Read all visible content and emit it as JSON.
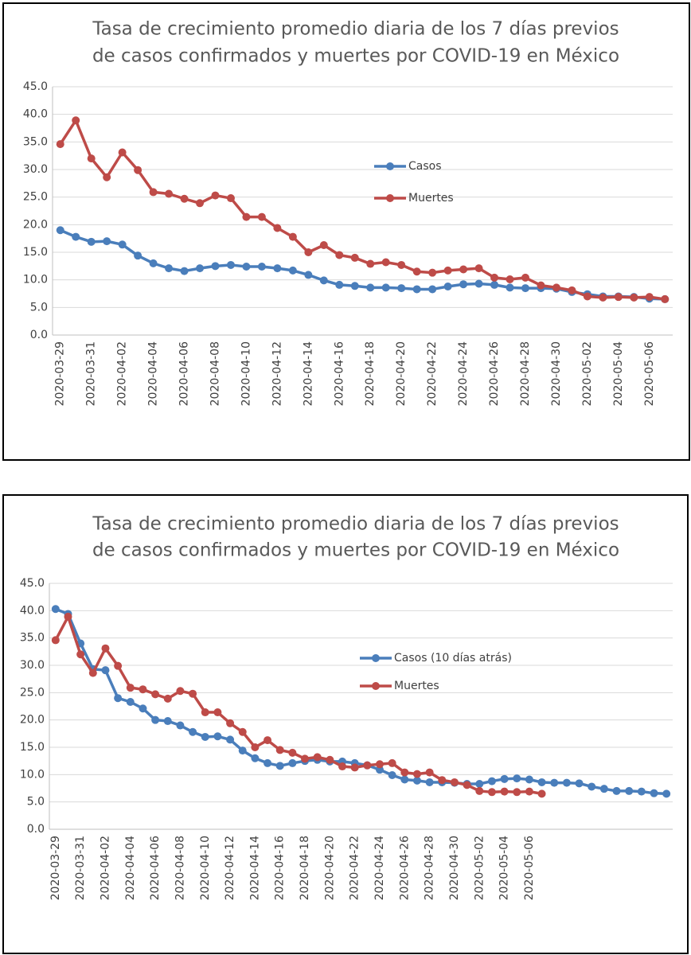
{
  "chart_data": [
    {
      "type": "line",
      "title": [
        "Tasa de crecimiento promedio diaria de los 7 días previos",
        "de casos confirmados y muertes por COVID-19 en México"
      ],
      "categories": [
        "2020-03-29",
        null,
        "2020-03-31",
        null,
        "2020-04-02",
        null,
        "2020-04-04",
        null,
        "2020-04-06",
        null,
        "2020-04-08",
        null,
        "2020-04-10",
        null,
        "2020-04-12",
        null,
        "2020-04-14",
        null,
        "2020-04-16",
        null,
        "2020-04-18",
        null,
        "2020-04-20",
        null,
        "2020-04-22",
        null,
        "2020-04-24",
        null,
        "2020-04-26",
        null,
        "2020-04-28",
        null,
        "2020-04-30",
        null,
        "2020-05-02",
        null,
        "2020-05-04",
        null,
        "2020-05-06",
        null
      ],
      "series": [
        {
          "name": "Casos",
          "color": "#4a7ebb",
          "values": [
            19.0,
            17.8,
            16.9,
            17.0,
            16.4,
            14.4,
            13.0,
            12.1,
            11.6,
            12.1,
            12.5,
            12.7,
            12.4,
            12.4,
            12.1,
            11.7,
            10.9,
            9.9,
            9.1,
            8.9,
            8.6,
            8.6,
            8.5,
            8.3,
            8.3,
            8.8,
            9.2,
            9.3,
            9.1,
            8.6,
            8.5,
            8.5,
            8.4,
            7.8,
            7.4,
            7.0,
            7.0,
            6.9,
            6.6,
            6.5
          ]
        },
        {
          "name": "Muertes",
          "color": "#be4b48",
          "values": [
            34.6,
            38.9,
            32.0,
            28.6,
            33.1,
            29.9,
            25.9,
            25.6,
            24.7,
            23.9,
            25.3,
            24.8,
            21.4,
            21.4,
            19.4,
            17.8,
            15.0,
            16.3,
            14.5,
            14.0,
            12.9,
            13.2,
            12.7,
            11.5,
            11.3,
            11.7,
            11.9,
            12.1,
            10.4,
            10.1,
            10.4,
            9.0,
            8.6,
            8.1,
            7.0,
            6.8,
            6.9,
            6.8,
            6.9,
            6.5
          ]
        }
      ],
      "ylim": [
        0,
        45
      ],
      "yticks": [
        {
          "value": 0,
          "label": "0.0"
        },
        {
          "value": 5,
          "label": "5.0"
        },
        {
          "value": 10,
          "label": "10.0"
        },
        {
          "value": 15,
          "label": "15.0"
        },
        {
          "value": 20,
          "label": "20.0"
        },
        {
          "value": 25,
          "label": "25.0"
        },
        {
          "value": 30,
          "label": "30.0"
        },
        {
          "value": 35,
          "label": "35.0"
        },
        {
          "value": 40,
          "label": "40.0"
        },
        {
          "value": 45,
          "label": "45.0"
        }
      ],
      "grid": true
    },
    {
      "type": "line",
      "title": [
        "Tasa de crecimiento promedio diaria de los 7 días previos",
        "de casos confirmados y muertes por COVID-19 en México"
      ],
      "categories": [
        "2020-03-29",
        null,
        "2020-03-31",
        null,
        "2020-04-02",
        null,
        "2020-04-04",
        null,
        "2020-04-06",
        null,
        "2020-04-08",
        null,
        "2020-04-10",
        null,
        "2020-04-12",
        null,
        "2020-04-14",
        null,
        "2020-04-16",
        null,
        "2020-04-18",
        null,
        "2020-04-20",
        null,
        "2020-04-22",
        null,
        "2020-04-24",
        null,
        "2020-04-26",
        null,
        "2020-04-28",
        null,
        "2020-04-30",
        null,
        "2020-05-02",
        null,
        "2020-05-04",
        null,
        "2020-05-06",
        null,
        null,
        null,
        null,
        null,
        null,
        null,
        null,
        null,
        null,
        null
      ],
      "series": [
        {
          "name": "Casos (10 días atrás)",
          "color": "#4a7ebb",
          "values": [
            40.3,
            39.4,
            34.0,
            29.3,
            29.1,
            24.0,
            23.3,
            22.1,
            20.0,
            19.8,
            19.0,
            17.8,
            16.9,
            17.0,
            16.4,
            14.4,
            13.0,
            12.1,
            11.6,
            12.1,
            12.5,
            12.7,
            12.4,
            12.4,
            12.1,
            11.7,
            10.9,
            9.9,
            9.1,
            8.9,
            8.6,
            8.6,
            8.5,
            8.3,
            8.3,
            8.8,
            9.2,
            9.3,
            9.1,
            8.6,
            8.5,
            8.5,
            8.4,
            7.8,
            7.4,
            7.0,
            7.0,
            6.9,
            6.6,
            6.5
          ]
        },
        {
          "name": "Muertes",
          "color": "#be4b48",
          "values": [
            34.6,
            38.9,
            32.0,
            28.6,
            33.1,
            29.9,
            25.9,
            25.6,
            24.7,
            23.9,
            25.3,
            24.8,
            21.4,
            21.4,
            19.4,
            17.8,
            15.0,
            16.3,
            14.5,
            14.0,
            12.9,
            13.2,
            12.7,
            11.5,
            11.3,
            11.7,
            11.9,
            12.1,
            10.4,
            10.1,
            10.4,
            9.0,
            8.6,
            8.1,
            7.0,
            6.8,
            6.9,
            6.8,
            6.9,
            6.5,
            null,
            null,
            null,
            null,
            null,
            null,
            null,
            null,
            null,
            null
          ]
        }
      ],
      "ylim": [
        0,
        45
      ],
      "yticks": [
        {
          "value": 0,
          "label": "0.0"
        },
        {
          "value": 5,
          "label": "5.0"
        },
        {
          "value": 10,
          "label": "10.0"
        },
        {
          "value": 15,
          "label": "15.0"
        },
        {
          "value": 20,
          "label": "20.0"
        },
        {
          "value": 25,
          "label": "25.0"
        },
        {
          "value": 30,
          "label": "30.0"
        },
        {
          "value": 35,
          "label": "35.0"
        },
        {
          "value": 40,
          "label": "40.0"
        },
        {
          "value": 45,
          "label": "45.0"
        }
      ],
      "grid": true
    }
  ]
}
